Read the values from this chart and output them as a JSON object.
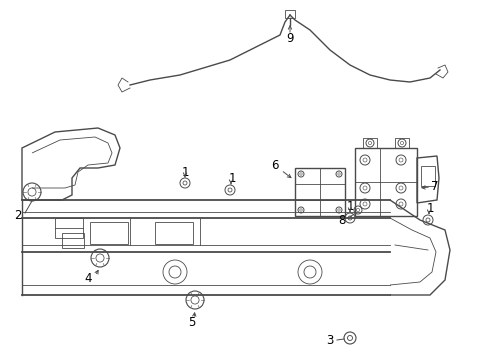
{
  "background_color": "#ffffff",
  "line_color": "#4a4a4a",
  "label_color": "#000000",
  "label_fontsize": 8.5,
  "fig_width": 4.9,
  "fig_height": 3.6,
  "dpi": 100
}
